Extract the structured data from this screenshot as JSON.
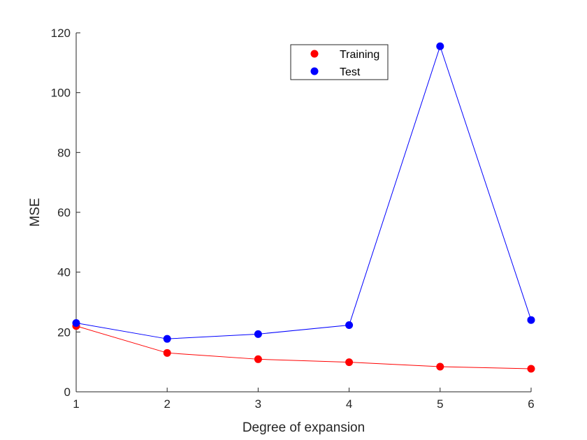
{
  "chart_data": {
    "type": "line",
    "xlabel": "Degree of expansion",
    "ylabel": "MSE",
    "xlim": [
      1,
      6
    ],
    "ylim": [
      0,
      120
    ],
    "xticks": [
      1,
      2,
      3,
      4,
      5,
      6
    ],
    "yticks": [
      0,
      20,
      40,
      60,
      80,
      100,
      120
    ],
    "grid": false,
    "legend_position": "top",
    "series": [
      {
        "name": "Training",
        "color": "#ff0000",
        "x": [
          1,
          2,
          3,
          4,
          5,
          6
        ],
        "y": [
          22.0,
          13.0,
          10.9,
          9.9,
          8.4,
          7.7
        ]
      },
      {
        "name": "Test",
        "color": "#0000ff",
        "x": [
          1,
          2,
          3,
          4,
          5,
          6
        ],
        "y": [
          23.0,
          17.7,
          19.3,
          22.3,
          115.5,
          24.0
        ]
      }
    ]
  }
}
